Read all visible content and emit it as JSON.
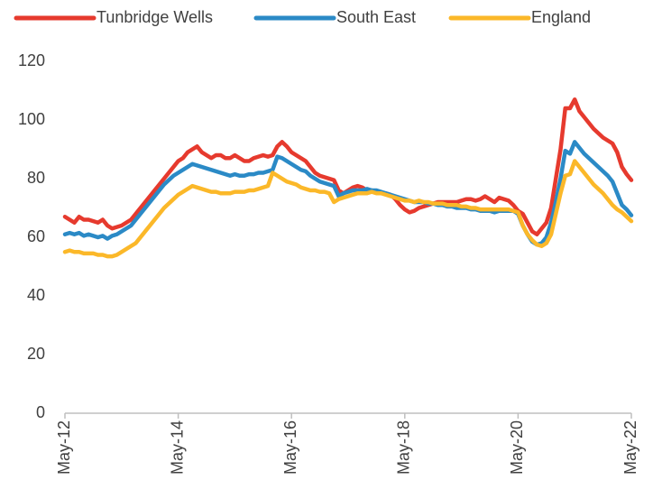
{
  "chart_data": {
    "type": "line",
    "categories": [
      "May-12",
      null,
      null,
      null,
      null,
      null,
      null,
      null,
      null,
      null,
      null,
      null,
      null,
      null,
      null,
      null,
      null,
      null,
      null,
      null,
      null,
      null,
      null,
      null,
      "May-14",
      null,
      null,
      null,
      null,
      null,
      null,
      null,
      null,
      null,
      null,
      null,
      null,
      null,
      null,
      null,
      null,
      null,
      null,
      null,
      null,
      null,
      null,
      null,
      "May-16",
      null,
      null,
      null,
      null,
      null,
      null,
      null,
      null,
      null,
      null,
      null,
      null,
      null,
      null,
      null,
      null,
      null,
      null,
      null,
      null,
      null,
      null,
      null,
      "May-18",
      null,
      null,
      null,
      null,
      null,
      null,
      null,
      null,
      null,
      null,
      null,
      null,
      null,
      null,
      null,
      null,
      null,
      null,
      null,
      null,
      null,
      null,
      null,
      "May-20",
      null,
      null,
      null,
      null,
      null,
      null,
      null,
      null,
      null,
      null,
      null,
      null,
      null,
      null,
      null,
      null,
      null,
      null,
      null,
      null,
      null,
      null,
      null,
      "May-22"
    ],
    "series": [
      {
        "name": "Tunbridge Wells",
        "color": "#e63a2e",
        "values": [
          67,
          66,
          65,
          67,
          66,
          66,
          65.5,
          65,
          66,
          64,
          63,
          63.5,
          64,
          65,
          66,
          68,
          70,
          72,
          74,
          76,
          78,
          80,
          82,
          84,
          86,
          87,
          89,
          90,
          91,
          89,
          88,
          87,
          88,
          88,
          87,
          87,
          88,
          87,
          86,
          86,
          87,
          87.5,
          88,
          87.5,
          88,
          91,
          92.5,
          91,
          89,
          88,
          87,
          86,
          84,
          82,
          81,
          80.5,
          80,
          79.5,
          76,
          75,
          76,
          77,
          77.5,
          77,
          76,
          76,
          75.5,
          75,
          75,
          74.5,
          73,
          71,
          69.5,
          68.5,
          69,
          70,
          70.5,
          71,
          71.5,
          72,
          72,
          72,
          72,
          72,
          72.5,
          73,
          73,
          72.5,
          73,
          74,
          73,
          72,
          73.5,
          73,
          72.5,
          71,
          69,
          68,
          65,
          62,
          61,
          63,
          65,
          70,
          80,
          90,
          104,
          104,
          107,
          103,
          101,
          99,
          97,
          95.5,
          94,
          93,
          92,
          89,
          84,
          81.5,
          79.5
        ]
      },
      {
        "name": "South East",
        "color": "#2b8ac6",
        "values": [
          61,
          61.5,
          61,
          61.5,
          60.5,
          61,
          60.5,
          60,
          60.5,
          59.5,
          60.5,
          61,
          62,
          63,
          64,
          66,
          68,
          70,
          72,
          74,
          76,
          78,
          79.5,
          81,
          82,
          83,
          84,
          85,
          84.5,
          84,
          83.5,
          83,
          82.5,
          82,
          81.5,
          81,
          81.5,
          81,
          81,
          81.5,
          81.5,
          82,
          82,
          82.5,
          83,
          87.5,
          87,
          86,
          85,
          84,
          83,
          82.5,
          81,
          80,
          79,
          78.5,
          78,
          77.5,
          74,
          75,
          75.5,
          76,
          76,
          76,
          76.5,
          76,
          76,
          75.5,
          75,
          74.5,
          74,
          73.5,
          73,
          72.5,
          72,
          72,
          72,
          71.5,
          71.5,
          71,
          71,
          70.5,
          70.5,
          70,
          70,
          70,
          69.5,
          69.5,
          69,
          69,
          69,
          68.5,
          69,
          69,
          69,
          69,
          68,
          64,
          61,
          58.5,
          57.5,
          58,
          60,
          65,
          72,
          80,
          89.5,
          88.5,
          92.5,
          90.5,
          88.5,
          87,
          85.5,
          84,
          82.5,
          81,
          79,
          75,
          71,
          69.5,
          67.5
        ]
      },
      {
        "name": "England",
        "color": "#fbb829",
        "values": [
          55,
          55.5,
          55,
          55,
          54.5,
          54.5,
          54.5,
          54,
          54,
          53.5,
          53.5,
          54,
          55,
          56,
          57,
          58,
          60,
          62,
          64,
          66,
          68,
          70,
          71.5,
          73,
          74.5,
          75.5,
          76.5,
          77.5,
          77,
          76.5,
          76,
          75.5,
          75.5,
          75,
          75,
          75,
          75.5,
          75.5,
          75.5,
          76,
          76,
          76.5,
          77,
          77.5,
          82,
          81,
          80,
          79,
          78.5,
          78,
          77,
          76.5,
          76,
          76,
          75.5,
          75.5,
          75,
          72,
          73,
          73.5,
          74,
          74.5,
          75,
          75,
          75,
          75.5,
          75,
          75,
          74.5,
          74,
          73.5,
          73,
          72.5,
          72.5,
          72,
          72.5,
          72,
          72,
          71.5,
          71.5,
          71.5,
          71,
          71,
          71,
          70.5,
          70.5,
          70,
          70,
          69.5,
          69.5,
          69.5,
          69.5,
          69.5,
          69.5,
          69.5,
          69,
          68.5,
          64,
          61,
          59,
          57.5,
          57,
          58,
          61,
          68,
          75,
          81,
          81.5,
          86,
          84,
          82,
          80,
          78,
          76.5,
          75,
          73,
          71,
          69.5,
          68.5,
          67,
          65.5
        ]
      }
    ],
    "ylim": [
      0,
      120
    ],
    "yticks": [
      0,
      20,
      40,
      60,
      80,
      100,
      120
    ],
    "grid": false,
    "legend": "top"
  }
}
